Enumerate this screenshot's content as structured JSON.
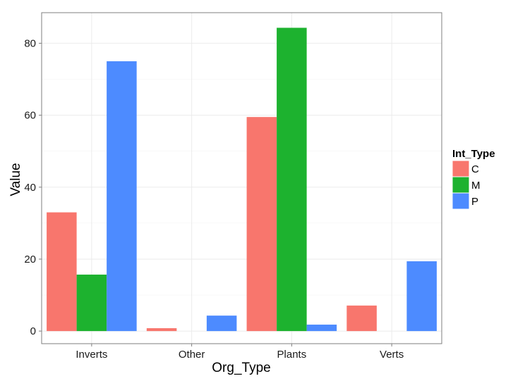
{
  "chart_data": {
    "type": "bar",
    "xlabel": "Org_Type",
    "ylabel": "Value",
    "categories": [
      "Inverts",
      "Other",
      "Plants",
      "Verts"
    ],
    "series": [
      {
        "name": "C",
        "color": "#F8766D",
        "values": [
          33,
          0.8,
          59.5,
          7.1
        ]
      },
      {
        "name": "M",
        "color": "#1DB22F",
        "values": [
          15.7,
          0,
          84.3,
          0
        ]
      },
      {
        "name": "P",
        "color": "#4D8BFF",
        "values": [
          75,
          4.3,
          1.8,
          19.4
        ]
      }
    ],
    "ylim": [
      -3.5,
      88.5
    ],
    "yticks": [
      0,
      20,
      40,
      60,
      80
    ],
    "grid": true,
    "legend": {
      "title": "Int_Type",
      "position": "right"
    }
  }
}
